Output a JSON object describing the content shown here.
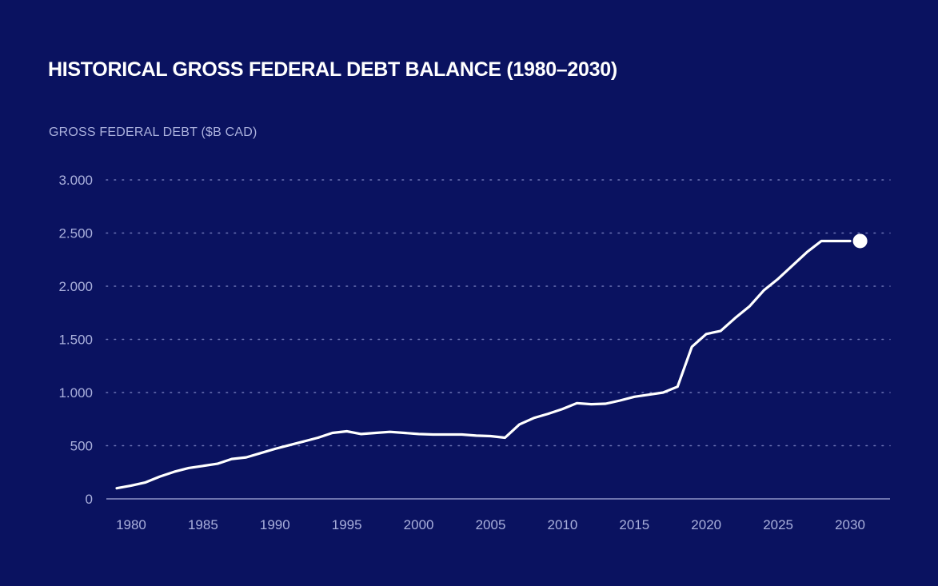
{
  "colors": {
    "background": "#0a1260",
    "line": "#ffffff",
    "gridline": "#7f86c4",
    "tick_text": "#aab0dc",
    "axis": "#aab0dc"
  },
  "chart_data": {
    "type": "line",
    "title": "HISTORICAL GROSS FEDERAL DEBT BALANCE (1980–2030)",
    "ylabel": "GROSS FEDERAL DEBT ($B CAD)",
    "xlabel": "",
    "xlim": [
      1979,
      2031
    ],
    "ylim": [
      0,
      3000
    ],
    "grid": "horizontal dotted",
    "x_ticks": [
      1980,
      1985,
      1990,
      1995,
      2000,
      2005,
      2010,
      2015,
      2020,
      2025,
      2030
    ],
    "y_ticks": [
      {
        "value": 0,
        "label": "0"
      },
      {
        "value": 500,
        "label": "500"
      },
      {
        "value": 1000,
        "label": "1.000"
      },
      {
        "value": 1500,
        "label": "1.500"
      },
      {
        "value": 2000,
        "label": "2.000"
      },
      {
        "value": 2500,
        "label": "2.500"
      },
      {
        "value": 3000,
        "label": "3.000"
      }
    ],
    "series": [
      {
        "x": [
          1979,
          1980,
          1981,
          1982,
          1983,
          1984,
          1985,
          1986,
          1987,
          1988,
          1989,
          1990,
          1991,
          1992,
          1993,
          1994,
          1995,
          1996,
          1997,
          1998,
          1999,
          2000,
          2001,
          2002,
          2003,
          2004,
          2005,
          2006,
          2007,
          2008,
          2009,
          2010,
          2011,
          2012,
          2013,
          2014,
          2015,
          2016,
          2017,
          2018,
          2019,
          2020,
          2021,
          2022,
          2023,
          2024,
          2025,
          2026,
          2027,
          2028,
          2029,
          2030,
          2031
        ],
        "values": [
          100,
          125,
          155,
          210,
          255,
          290,
          310,
          330,
          375,
          390,
          430,
          470,
          505,
          540,
          575,
          620,
          635,
          610,
          620,
          630,
          620,
          610,
          605,
          605,
          605,
          595,
          590,
          575,
          700,
          760,
          800,
          845,
          900,
          890,
          895,
          925,
          960,
          980,
          1000,
          1055,
          1430,
          1550,
          1580,
          1700,
          1810,
          1960,
          2070,
          2195,
          2320,
          2425,
          2425,
          2425,
          2425
        ],
        "end_marker": true
      }
    ]
  }
}
